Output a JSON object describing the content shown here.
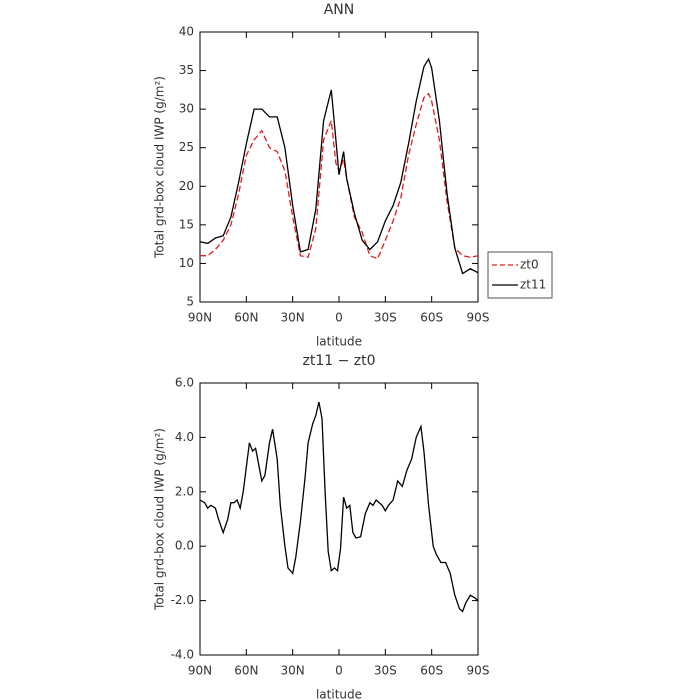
{
  "chart_data": [
    {
      "type": "line",
      "title": "ANN",
      "xlabel": "latitude",
      "ylabel": "Total grd-box cloud IWP (g/m²)",
      "x": [
        90,
        85,
        80,
        75,
        70,
        65,
        60,
        55,
        50,
        45,
        40,
        35,
        30,
        25,
        20,
        15,
        10,
        5,
        2,
        0,
        -3,
        -5,
        -10,
        -15,
        -20,
        -25,
        -30,
        -35,
        -40,
        -45,
        -50,
        -55,
        -58,
        -60,
        -65,
        -70,
        -75,
        -80,
        -85,
        -90
      ],
      "series": [
        {
          "name": "zt0",
          "color": "#e41a1c",
          "dash": true,
          "values": [
            11,
            11,
            11.8,
            13,
            15,
            19,
            24,
            26,
            27.2,
            25,
            24.5,
            22,
            16,
            11,
            10.8,
            14.5,
            26,
            28.5,
            23,
            22,
            23.5,
            21,
            16,
            14,
            11,
            10.6,
            13,
            15.5,
            18.5,
            24,
            28,
            31.5,
            32,
            31,
            26,
            18,
            12,
            11,
            10.8,
            11
          ]
        },
        {
          "name": "zt11",
          "color": "#000000",
          "dash": false,
          "values": [
            12.8,
            12.6,
            13.3,
            13.6,
            16,
            20.5,
            25.5,
            30,
            30,
            29,
            29,
            25,
            17.5,
            11.5,
            11.8,
            17,
            28.5,
            32.5,
            26,
            21.5,
            24.5,
            21,
            16.5,
            13,
            11.8,
            12.8,
            15.5,
            17.5,
            20.5,
            25.5,
            31,
            35.5,
            36.5,
            35.3,
            28.5,
            19,
            12,
            8.7,
            9.3,
            8.8
          ]
        }
      ],
      "xlim": [
        90,
        -90
      ],
      "xticks": [
        {
          "value": 90,
          "label": "90N"
        },
        {
          "value": 60,
          "label": "60N"
        },
        {
          "value": 30,
          "label": "30N"
        },
        0,
        {
          "value": -30,
          "label": "30S"
        },
        {
          "value": -60,
          "label": "60S"
        },
        {
          "value": -90,
          "label": "90S"
        }
      ],
      "ylim": [
        5,
        40
      ],
      "yticks": [
        5,
        10,
        15,
        20,
        25,
        30,
        35,
        40
      ],
      "legend": "right"
    },
    {
      "type": "line",
      "title": "zt11 − zt0",
      "xlabel": "latitude",
      "ylabel": "Total grd-box cloud IWP (g/m²)",
      "x": [
        90,
        87,
        85,
        83,
        80,
        78,
        75,
        72,
        70,
        68,
        66,
        64,
        62,
        58,
        56,
        54,
        52,
        50,
        48,
        45,
        43,
        40,
        38,
        35,
        33,
        30,
        28,
        25,
        22,
        20,
        17,
        15,
        13,
        11,
        9,
        7,
        5,
        3,
        1,
        -1,
        -3,
        -5,
        -7,
        -9,
        -11,
        -14,
        -17,
        -20,
        -22,
        -24,
        -26,
        -28,
        -30,
        -32,
        -35,
        -38,
        -41,
        -44,
        -47,
        -50,
        -53,
        -55,
        -58,
        -61,
        -63,
        -66,
        -69,
        -72,
        -75,
        -78,
        -80,
        -82,
        -85,
        -88,
        -90
      ],
      "series": [
        {
          "name": "zt11 − zt0",
          "color": "#000000",
          "dash": false,
          "values": [
            1.7,
            1.6,
            1.4,
            1.5,
            1.4,
            1.0,
            0.5,
            1.0,
            1.6,
            1.6,
            1.7,
            1.4,
            2.0,
            3.8,
            3.5,
            3.6,
            3.0,
            2.4,
            2.6,
            3.8,
            4.3,
            3.2,
            1.5,
            0.0,
            -0.8,
            -1.0,
            -0.4,
            0.9,
            2.5,
            3.8,
            4.5,
            4.8,
            5.3,
            4.7,
            2.0,
            -0.2,
            -0.9,
            -0.8,
            -0.9,
            -0.1,
            1.8,
            1.4,
            1.5,
            0.5,
            0.3,
            0.35,
            1.2,
            1.6,
            1.5,
            1.7,
            1.6,
            1.5,
            1.3,
            1.5,
            1.7,
            2.4,
            2.2,
            2.8,
            3.2,
            4.0,
            4.4,
            3.5,
            1.5,
            0.0,
            -0.3,
            -0.6,
            -0.6,
            -1.0,
            -1.8,
            -2.3,
            -2.4,
            -2.1,
            -1.8,
            -1.9,
            -2.0
          ]
        }
      ],
      "xlim": [
        90,
        -90
      ],
      "xticks": [
        {
          "value": 90,
          "label": "90N"
        },
        {
          "value": 60,
          "label": "60N"
        },
        {
          "value": 30,
          "label": "30N"
        },
        0,
        {
          "value": -30,
          "label": "30S"
        },
        {
          "value": -60,
          "label": "60S"
        },
        {
          "value": -90,
          "label": "90S"
        }
      ],
      "ylim": [
        -4,
        6
      ],
      "yticks": [
        {
          "value": -4,
          "label": "-4.0"
        },
        {
          "value": -2,
          "label": "-2.0"
        },
        {
          "value": 0,
          "label": "0.0"
        },
        {
          "value": 2,
          "label": "2.0"
        },
        {
          "value": 4,
          "label": "4.0"
        },
        {
          "value": 6,
          "label": "6.0"
        }
      ]
    }
  ]
}
